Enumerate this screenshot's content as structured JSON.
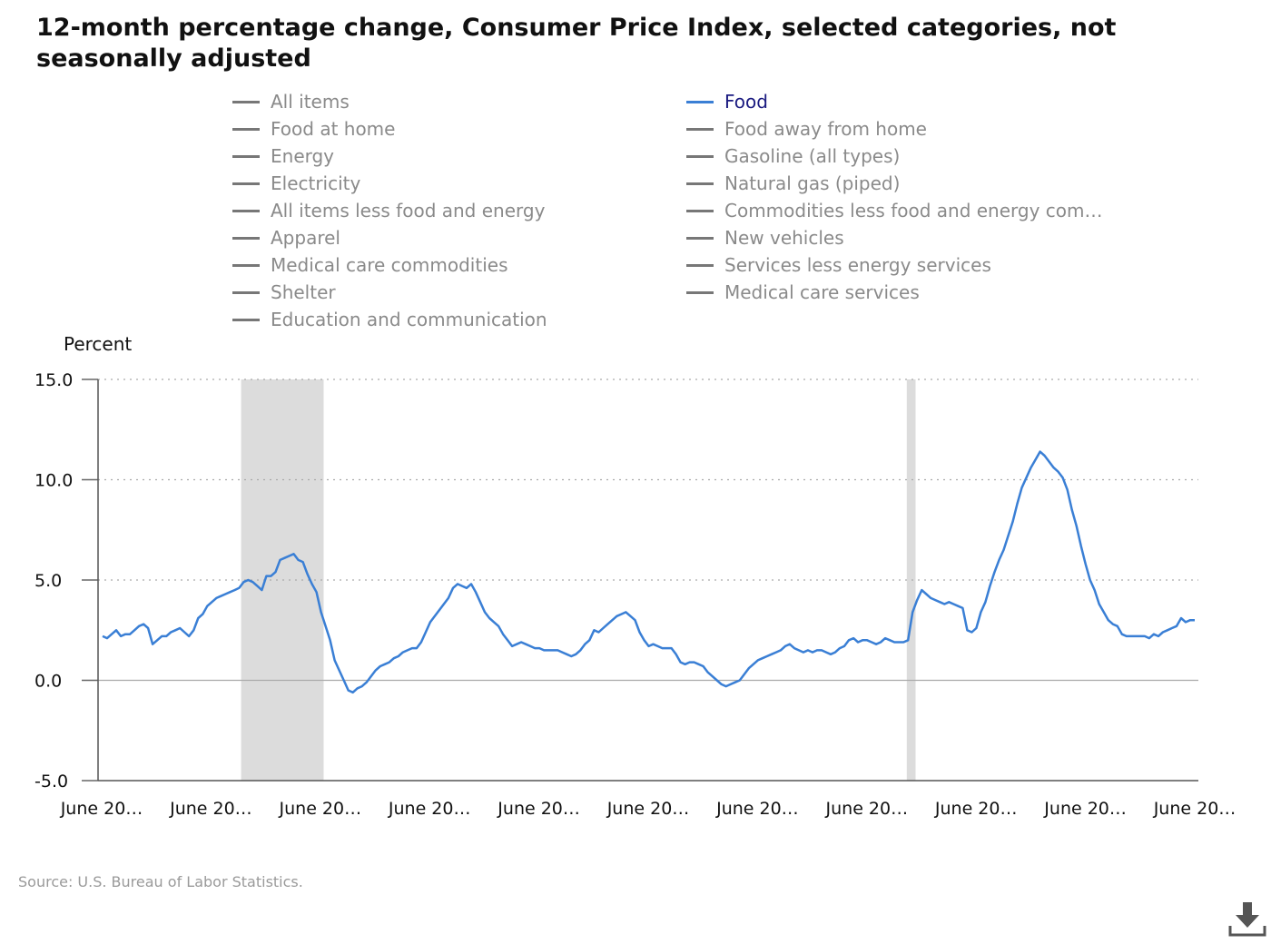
{
  "title": "12-month percentage change, Consumer Price Index, selected categories, not seasonally adjusted",
  "legend": {
    "left_column": [
      "All items",
      "Food at home",
      "Energy",
      "Electricity",
      "All items less food and energy",
      "Apparel",
      "Medical care commodities",
      "Shelter",
      "Education and communication"
    ],
    "right_column": [
      "Food",
      "Food away from home",
      "Gasoline (all types)",
      "Natural gas (piped)",
      "Commodities less food and energy com…",
      "New vehicles",
      "Services less energy services",
      "Medical care services"
    ],
    "active": "Food"
  },
  "colors": {
    "active_series": "#3a7fd5",
    "inactive_legend": "#777777",
    "recession_shading": "#dcdcdc"
  },
  "source": "Source: U.S. Bureau of Labor Statistics.",
  "download_icon": "download-icon",
  "chart_data": {
    "type": "line",
    "ylabel": "Percent",
    "ylim": [
      -5,
      15
    ],
    "yticks": [
      "15.0",
      "10.0",
      "5.0",
      "0.0",
      "-5.0"
    ],
    "ytick_values": [
      15,
      10,
      5,
      0,
      -5
    ],
    "xtick_labels": [
      "June 20…",
      "June 20…",
      "June 20…",
      "June 20…",
      "June 20…",
      "June 20…",
      "June 20…",
      "June 20…",
      "June 20…",
      "June 20…",
      "June 20…"
    ],
    "grid": true,
    "recession_bands": [
      [
        0.13,
        0.205
      ],
      [
        0.735,
        0.743
      ]
    ],
    "series": [
      {
        "name": "Food",
        "values": [
          2.2,
          2.1,
          2.3,
          2.5,
          2.2,
          2.3,
          2.3,
          2.5,
          2.7,
          2.8,
          2.6,
          1.8,
          2.0,
          2.2,
          2.2,
          2.4,
          2.5,
          2.6,
          2.4,
          2.2,
          2.5,
          3.1,
          3.3,
          3.7,
          3.9,
          4.1,
          4.2,
          4.3,
          4.4,
          4.5,
          4.6,
          4.9,
          5.0,
          4.9,
          4.7,
          4.5,
          5.2,
          5.2,
          5.4,
          6.0,
          6.1,
          6.2,
          6.3,
          6.0,
          5.9,
          5.3,
          4.8,
          4.4,
          3.4,
          2.7,
          2.0,
          1.0,
          0.5,
          0.0,
          -0.5,
          -0.6,
          -0.4,
          -0.3,
          -0.1,
          0.2,
          0.5,
          0.7,
          0.8,
          0.9,
          1.1,
          1.2,
          1.4,
          1.5,
          1.6,
          1.6,
          1.9,
          2.4,
          2.9,
          3.2,
          3.5,
          3.8,
          4.1,
          4.6,
          4.8,
          4.7,
          4.6,
          4.8,
          4.4,
          3.9,
          3.4,
          3.1,
          2.9,
          2.7,
          2.3,
          2.0,
          1.7,
          1.8,
          1.9,
          1.8,
          1.7,
          1.6,
          1.6,
          1.5,
          1.5,
          1.5,
          1.5,
          1.4,
          1.3,
          1.2,
          1.3,
          1.5,
          1.8,
          2.0,
          2.5,
          2.4,
          2.6,
          2.8,
          3.0,
          3.2,
          3.3,
          3.4,
          3.2,
          3.0,
          2.4,
          2.0,
          1.7,
          1.8,
          1.7,
          1.6,
          1.6,
          1.6,
          1.3,
          0.9,
          0.8,
          0.9,
          0.9,
          0.8,
          0.7,
          0.4,
          0.2,
          0.0,
          -0.2,
          -0.3,
          -0.2,
          -0.1,
          0.0,
          0.3,
          0.6,
          0.8,
          1.0,
          1.1,
          1.2,
          1.3,
          1.4,
          1.5,
          1.7,
          1.8,
          1.6,
          1.5,
          1.4,
          1.5,
          1.4,
          1.5,
          1.5,
          1.4,
          1.3,
          1.4,
          1.6,
          1.7,
          2.0,
          2.1,
          1.9,
          2.0,
          2.0,
          1.9,
          1.8,
          1.9,
          2.1,
          2.0,
          1.9,
          1.9,
          1.9,
          2.0,
          3.4,
          4.0,
          4.5,
          4.3,
          4.1,
          4.0,
          3.9,
          3.8,
          3.9,
          3.8,
          3.7,
          3.6,
          2.5,
          2.4,
          2.6,
          3.4,
          3.9,
          4.7,
          5.4,
          6.0,
          6.5,
          7.2,
          7.9,
          8.8,
          9.6,
          10.1,
          10.6,
          11.0,
          11.4,
          11.2,
          10.9,
          10.6,
          10.4,
          10.1,
          9.5,
          8.5,
          7.7,
          6.7,
          5.8,
          5.0,
          4.5,
          3.8,
          3.4,
          3.0,
          2.8,
          2.7,
          2.3,
          2.2,
          2.2,
          2.2,
          2.2,
          2.2,
          2.1,
          2.3,
          2.2,
          2.4,
          2.5,
          2.6,
          2.7,
          3.1,
          2.9,
          3.0,
          3.0
        ]
      }
    ]
  }
}
